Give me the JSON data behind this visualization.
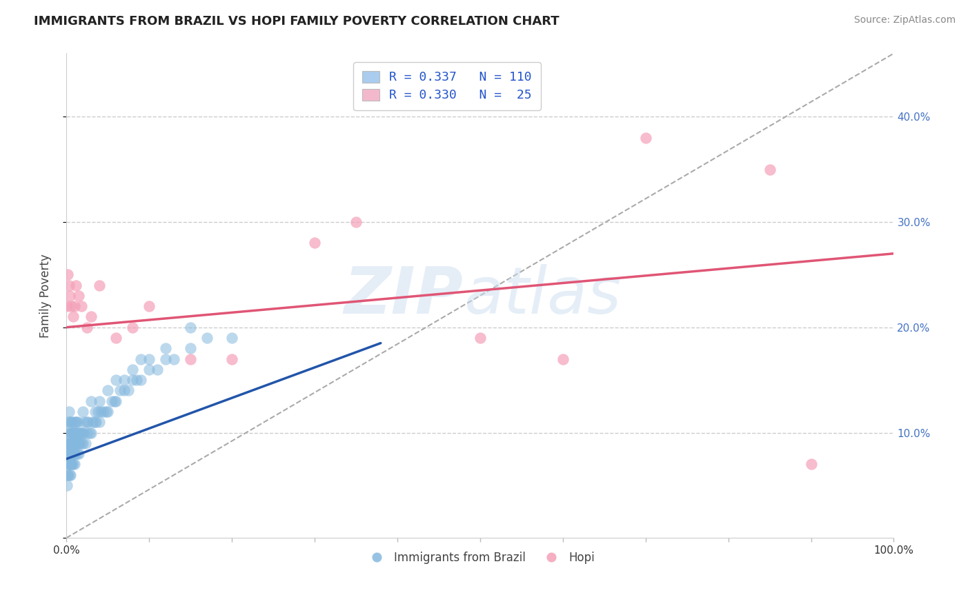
{
  "title": "IMMIGRANTS FROM BRAZIL VS HOPI FAMILY POVERTY CORRELATION CHART",
  "source": "Source: ZipAtlas.com",
  "ylabel": "Family Poverty",
  "legend_labels": [
    "Immigrants from Brazil",
    "Hopi"
  ],
  "blue_R": 0.337,
  "blue_N": 110,
  "pink_R": 0.33,
  "pink_N": 25,
  "blue_color": "#85b8de",
  "pink_color": "#f4a0b8",
  "blue_line_color": "#2255aa",
  "pink_line_color": "#e05575",
  "blue_legend_color": "#aaccee",
  "pink_legend_color": "#f4b8cc",
  "watermark_zip": "ZIP",
  "watermark_atlas": "atlas",
  "xlim": [
    0,
    1
  ],
  "ylim": [
    0,
    0.46
  ],
  "xtick_positions": [
    0.0,
    0.1,
    0.2,
    0.3,
    0.4,
    0.5,
    0.6,
    0.7,
    0.8,
    0.9,
    1.0
  ],
  "xtick_major": [
    0.0,
    1.0
  ],
  "xtick_major_labels": [
    "0.0%",
    "100.0%"
  ],
  "yticks_right": [
    0.1,
    0.2,
    0.3,
    0.4
  ],
  "ytick_labels_right": [
    "10.0%",
    "20.0%",
    "30.0%",
    "40.0%"
  ],
  "grid_color": "#cccccc",
  "background_color": "#ffffff",
  "blue_scatter_x": [
    0.001,
    0.001,
    0.001,
    0.002,
    0.002,
    0.002,
    0.002,
    0.003,
    0.003,
    0.003,
    0.003,
    0.003,
    0.004,
    0.004,
    0.004,
    0.005,
    0.005,
    0.005,
    0.005,
    0.006,
    0.006,
    0.006,
    0.006,
    0.007,
    0.007,
    0.007,
    0.007,
    0.008,
    0.008,
    0.008,
    0.009,
    0.009,
    0.009,
    0.01,
    0.01,
    0.01,
    0.01,
    0.011,
    0.011,
    0.012,
    0.012,
    0.013,
    0.013,
    0.014,
    0.014,
    0.015,
    0.015,
    0.016,
    0.017,
    0.018,
    0.019,
    0.02,
    0.021,
    0.022,
    0.023,
    0.025,
    0.026,
    0.028,
    0.03,
    0.032,
    0.034,
    0.036,
    0.038,
    0.04,
    0.042,
    0.045,
    0.048,
    0.05,
    0.055,
    0.058,
    0.06,
    0.065,
    0.07,
    0.075,
    0.08,
    0.085,
    0.09,
    0.1,
    0.11,
    0.12,
    0.13,
    0.15,
    0.17,
    0.2,
    0.001,
    0.002,
    0.003,
    0.004,
    0.005,
    0.006,
    0.007,
    0.008,
    0.009,
    0.01,
    0.012,
    0.015,
    0.018,
    0.02,
    0.025,
    0.03,
    0.035,
    0.04,
    0.05,
    0.06,
    0.07,
    0.08,
    0.09,
    0.1,
    0.12,
    0.15
  ],
  "blue_scatter_y": [
    0.08,
    0.09,
    0.1,
    0.06,
    0.07,
    0.08,
    0.11,
    0.07,
    0.08,
    0.09,
    0.1,
    0.12,
    0.07,
    0.09,
    0.11,
    0.06,
    0.08,
    0.09,
    0.11,
    0.07,
    0.08,
    0.09,
    0.1,
    0.07,
    0.08,
    0.1,
    0.11,
    0.07,
    0.09,
    0.1,
    0.08,
    0.09,
    0.11,
    0.07,
    0.08,
    0.09,
    0.1,
    0.08,
    0.1,
    0.09,
    0.11,
    0.08,
    0.1,
    0.09,
    0.11,
    0.08,
    0.1,
    0.09,
    0.1,
    0.09,
    0.1,
    0.09,
    0.1,
    0.11,
    0.09,
    0.1,
    0.11,
    0.1,
    0.1,
    0.11,
    0.11,
    0.11,
    0.12,
    0.11,
    0.12,
    0.12,
    0.12,
    0.12,
    0.13,
    0.13,
    0.13,
    0.14,
    0.14,
    0.14,
    0.15,
    0.15,
    0.15,
    0.16,
    0.16,
    0.17,
    0.17,
    0.18,
    0.19,
    0.19,
    0.05,
    0.06,
    0.07,
    0.06,
    0.08,
    0.07,
    0.09,
    0.08,
    0.1,
    0.09,
    0.11,
    0.09,
    0.1,
    0.12,
    0.11,
    0.13,
    0.12,
    0.13,
    0.14,
    0.15,
    0.15,
    0.16,
    0.17,
    0.17,
    0.18,
    0.2
  ],
  "pink_scatter_x": [
    0.001,
    0.002,
    0.003,
    0.004,
    0.006,
    0.008,
    0.01,
    0.012,
    0.015,
    0.018,
    0.025,
    0.03,
    0.04,
    0.06,
    0.08,
    0.1,
    0.15,
    0.2,
    0.3,
    0.35,
    0.5,
    0.6,
    0.7,
    0.85,
    0.9
  ],
  "pink_scatter_y": [
    0.22,
    0.25,
    0.24,
    0.23,
    0.22,
    0.21,
    0.22,
    0.24,
    0.23,
    0.22,
    0.2,
    0.21,
    0.24,
    0.19,
    0.2,
    0.22,
    0.17,
    0.17,
    0.28,
    0.3,
    0.19,
    0.17,
    0.38,
    0.35,
    0.07
  ],
  "blue_trend_x": [
    0.0,
    0.38
  ],
  "blue_trend_y": [
    0.075,
    0.185
  ],
  "pink_trend_x": [
    0.0,
    1.0
  ],
  "pink_trend_y": [
    0.2,
    0.27
  ],
  "ref_line_x": [
    0.0,
    1.0
  ],
  "ref_line_y": [
    0.0,
    0.46
  ]
}
